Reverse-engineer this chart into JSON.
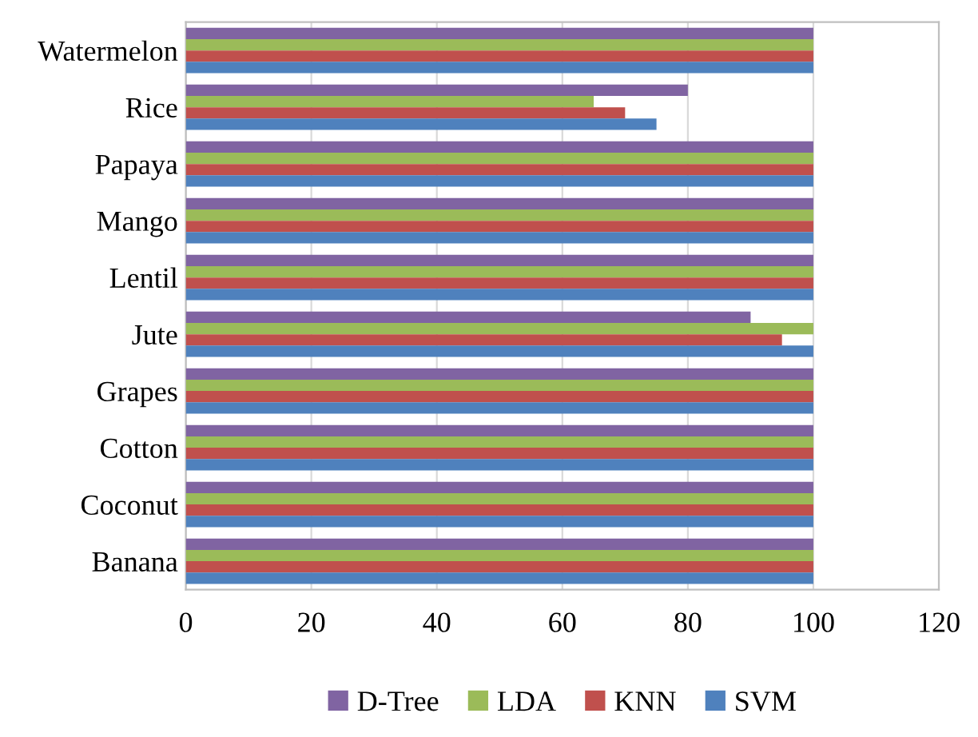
{
  "chart_data": {
    "type": "bar",
    "orientation": "horizontal",
    "categories": [
      "Watermelon",
      "Rice",
      "Papaya",
      "Mango",
      "Lentil",
      "Jute",
      "Grapes",
      "Cotton",
      "Coconut",
      "Banana"
    ],
    "series": [
      {
        "name": "D-Tree",
        "color": "#8064a2",
        "values": [
          100,
          80,
          100,
          100,
          100,
          90,
          100,
          100,
          100,
          100
        ]
      },
      {
        "name": "LDA",
        "color": "#9bbb59",
        "values": [
          100,
          65,
          100,
          100,
          100,
          100,
          100,
          100,
          100,
          100
        ]
      },
      {
        "name": "KNN",
        "color": "#c0504d",
        "values": [
          100,
          70,
          100,
          100,
          100,
          95,
          100,
          100,
          100,
          100
        ]
      },
      {
        "name": "SVM",
        "color": "#4f81bd",
        "values": [
          100,
          75,
          100,
          100,
          100,
          100,
          100,
          100,
          100,
          100
        ]
      }
    ],
    "xlim": [
      0,
      120
    ],
    "xticks": [
      0,
      20,
      40,
      60,
      80,
      100,
      120
    ],
    "grid": "x",
    "legend": "bottom"
  }
}
